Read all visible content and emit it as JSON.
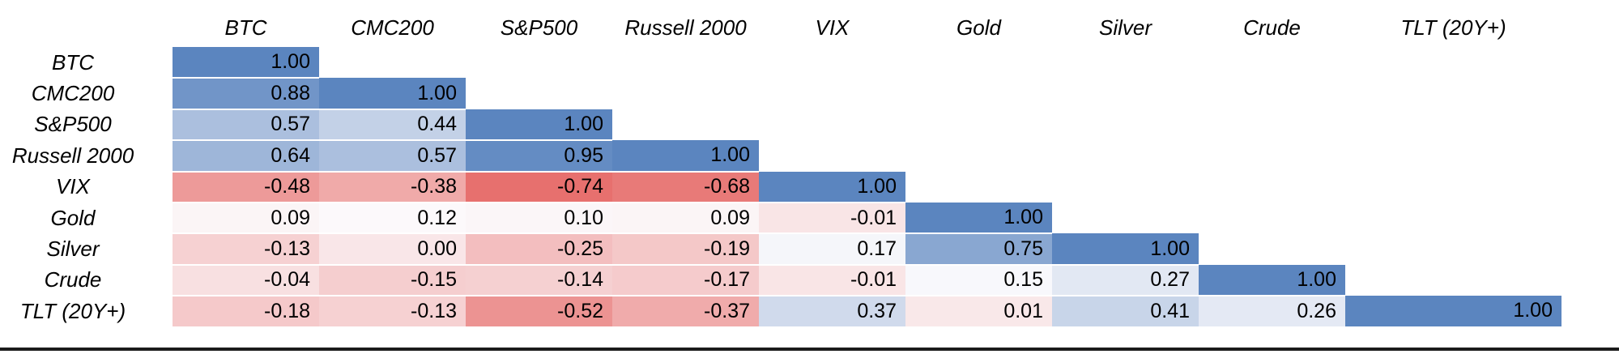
{
  "figure": {
    "bottom_rule_color": "#1b1b1b"
  },
  "chart_data": {
    "type": "heatmap",
    "title": "",
    "triangle": "lower",
    "legend": "none",
    "labels": [
      "BTC",
      "CMC200",
      "S&P500",
      "Russell 2000",
      "VIX",
      "Gold",
      "Silver",
      "Crude",
      "TLT (20Y+)"
    ],
    "matrix": [
      [
        1.0
      ],
      [
        0.88,
        1.0
      ],
      [
        0.57,
        0.44,
        1.0
      ],
      [
        0.64,
        0.57,
        0.95,
        1.0
      ],
      [
        -0.48,
        -0.38,
        -0.74,
        -0.68,
        1.0
      ],
      [
        0.09,
        0.12,
        0.1,
        0.09,
        -0.01,
        1.0
      ],
      [
        -0.13,
        0.0,
        -0.25,
        -0.19,
        0.17,
        0.75,
        1.0
      ],
      [
        -0.04,
        -0.15,
        -0.14,
        -0.17,
        -0.01,
        0.15,
        0.27,
        1.0
      ],
      [
        -0.18,
        -0.13,
        -0.52,
        -0.37,
        0.37,
        0.01,
        0.41,
        0.26,
        1.0
      ]
    ],
    "value_decimals": 2,
    "colormap": {
      "vmin": -0.74,
      "vmax": 1.0,
      "min_color": "#e7706e",
      "mid_color": "#fcfbfd",
      "max_color": "#5b85bf"
    }
  }
}
